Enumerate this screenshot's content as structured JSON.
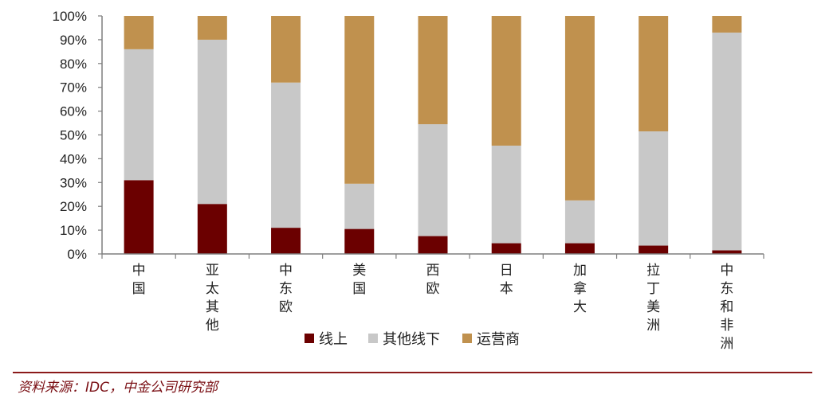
{
  "chart_data": {
    "type": "bar",
    "stacked": true,
    "normalized": true,
    "categories": [
      "中国",
      "亚太其他",
      "中东欧",
      "美国",
      "西欧",
      "日本",
      "加拿大",
      "拉丁美洲",
      "中东和非洲"
    ],
    "series": [
      {
        "name": "线上",
        "color": "#6b0000",
        "values": [
          31,
          21,
          11,
          10.5,
          7.5,
          4.5,
          4.5,
          3.5,
          1.5
        ]
      },
      {
        "name": "其他线下",
        "color": "#c8c8c8",
        "values": [
          55,
          69,
          61,
          19,
          47,
          41,
          18,
          48,
          91.5
        ]
      },
      {
        "name": "运营商",
        "color": "#c0914e",
        "values": [
          14,
          10,
          28,
          70.5,
          45.5,
          54.5,
          77.5,
          48.5,
          7
        ]
      }
    ],
    "yticks": [
      "0%",
      "10%",
      "20%",
      "30%",
      "40%",
      "50%",
      "60%",
      "70%",
      "80%",
      "90%",
      "100%"
    ],
    "ylim": [
      0,
      100
    ],
    "legend_position": "bottom",
    "grid": false
  },
  "source_note": "资料来源：IDC，中金公司研究部"
}
